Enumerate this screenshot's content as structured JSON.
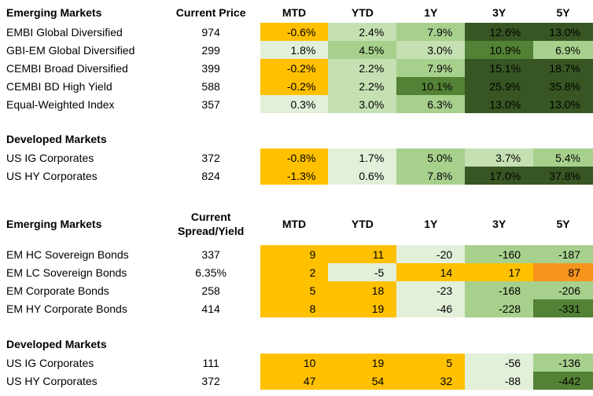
{
  "colors": {
    "y": "#ffc000",
    "o": "#f7941d",
    "g1": "#e2efd9",
    "g2": "#c5e0b3",
    "g3": "#a8d08d",
    "g4": "#538135",
    "g5": "#375623"
  },
  "table1": {
    "header": {
      "section": "Emerging Markets",
      "price": "Current Price",
      "cols": [
        "MTD",
        "YTD",
        "1Y",
        "3Y",
        "5Y"
      ]
    },
    "rows": [
      {
        "name": "EMBI Global Diversified",
        "price": "974",
        "vals": [
          "-0.6%",
          "2.4%",
          "7.9%",
          "12.6%",
          "13.0%"
        ],
        "c": [
          "y",
          "g2",
          "g3",
          "g5",
          "g5"
        ]
      },
      {
        "name": "GBI-EM Global Diversified",
        "price": "299",
        "vals": [
          "1.8%",
          "4.5%",
          "3.0%",
          "10.9%",
          "6.9%"
        ],
        "c": [
          "g1",
          "g3",
          "g2",
          "g4",
          "g3"
        ]
      },
      {
        "name": "CEMBI Broad Diversified",
        "price": "399",
        "vals": [
          "-0.2%",
          "2.2%",
          "7.9%",
          "15.1%",
          "18.7%"
        ],
        "c": [
          "y",
          "g2",
          "g3",
          "g5",
          "g5"
        ]
      },
      {
        "name": "CEMBI BD High Yield",
        "price": "588",
        "vals": [
          "-0.2%",
          "2.2%",
          "10.1%",
          "25.9%",
          "35.8%"
        ],
        "c": [
          "y",
          "g2",
          "g4",
          "g5",
          "g5"
        ]
      },
      {
        "name": "Equal-Weighted Index",
        "price": "357",
        "vals": [
          "0.3%",
          "3.0%",
          "6.3%",
          "13.0%",
          "13.0%"
        ],
        "c": [
          "g1",
          "g2",
          "g3",
          "g5",
          "g5"
        ]
      }
    ],
    "dev_header": "Developed Markets",
    "dev_rows": [
      {
        "name": "US IG Corporates",
        "price": "372",
        "vals": [
          "-0.8%",
          "1.7%",
          "5.0%",
          "3.7%",
          "5.4%"
        ],
        "c": [
          "y",
          "g1",
          "g3",
          "g2",
          "g3"
        ]
      },
      {
        "name": "US HY Corporates",
        "price": "824",
        "vals": [
          "-1.3%",
          "0.6%",
          "7.8%",
          "17.0%",
          "37.8%"
        ],
        "c": [
          "y",
          "g1",
          "g3",
          "g5",
          "g5"
        ]
      }
    ]
  },
  "table2": {
    "header": {
      "section": "Emerging Markets",
      "price_line1": "Current",
      "price_line2": "Spread/Yield",
      "cols": [
        "MTD",
        "YTD",
        "1Y",
        "3Y",
        "5Y"
      ]
    },
    "rows": [
      {
        "name": "EM HC Sovereign Bonds",
        "price": "337",
        "vals": [
          "9",
          "11",
          "-20",
          "-160",
          "-187"
        ],
        "c": [
          "y",
          "y",
          "g1",
          "g3",
          "g3"
        ]
      },
      {
        "name": "EM LC Sovereign Bonds",
        "price": "6.35%",
        "vals": [
          "2",
          "-5",
          "14",
          "17",
          "87"
        ],
        "c": [
          "y",
          "g1",
          "y",
          "y",
          "o"
        ]
      },
      {
        "name": "EM Corporate Bonds",
        "price": "258",
        "vals": [
          "5",
          "18",
          "-23",
          "-168",
          "-206"
        ],
        "c": [
          "y",
          "y",
          "g1",
          "g3",
          "g3"
        ]
      },
      {
        "name": "EM HY Corporate Bonds",
        "price": "414",
        "vals": [
          "8",
          "19",
          "-46",
          "-228",
          "-331"
        ],
        "c": [
          "y",
          "y",
          "g1",
          "g3",
          "g4"
        ]
      }
    ],
    "dev_header": "Developed Markets",
    "dev_rows": [
      {
        "name": "US IG Corporates",
        "price": "111",
        "vals": [
          "10",
          "19",
          "5",
          "-56",
          "-136"
        ],
        "c": [
          "y",
          "y",
          "y",
          "g1",
          "g3"
        ]
      },
      {
        "name": "US HY Corporates",
        "price": "372",
        "vals": [
          "47",
          "54",
          "32",
          "-88",
          "-442"
        ],
        "c": [
          "y",
          "y",
          "y",
          "g1",
          "g4"
        ]
      }
    ]
  }
}
